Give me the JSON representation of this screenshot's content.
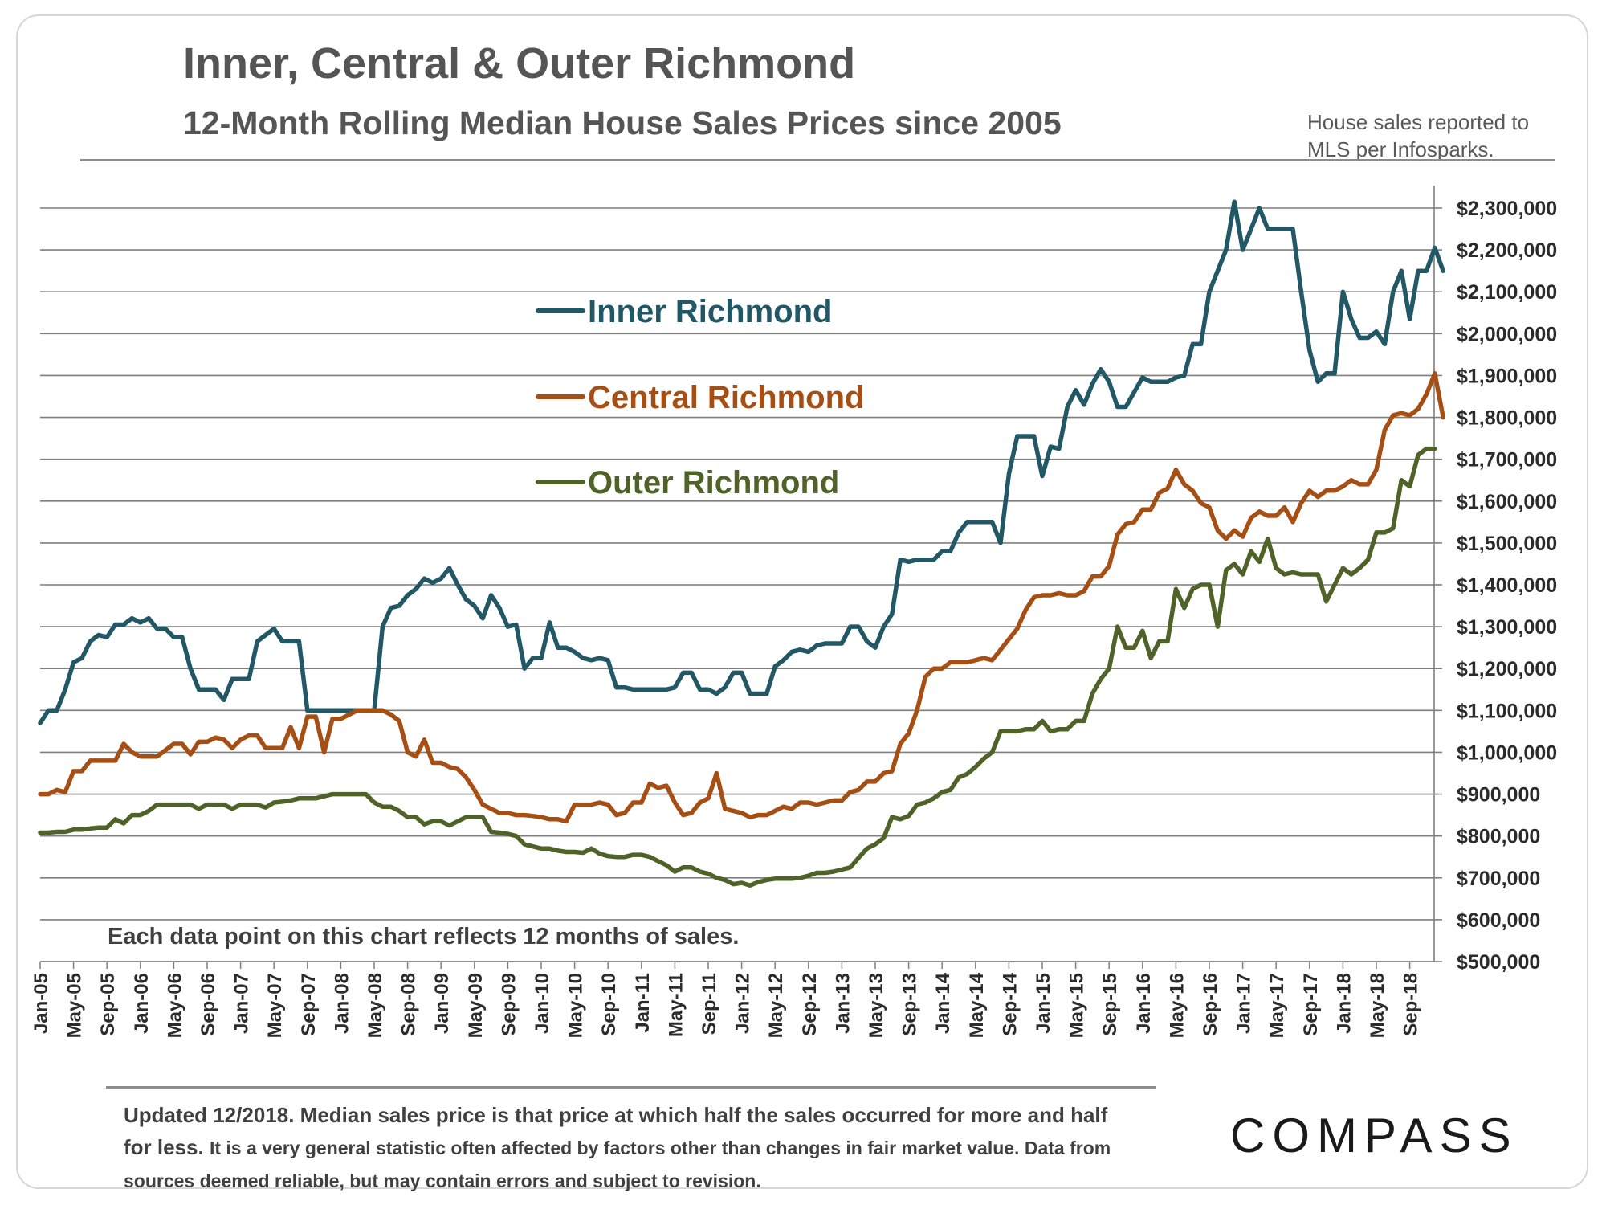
{
  "header": {
    "title": "Inner, Central & Outer Richmond",
    "subtitle": "12-Month Rolling Median House Sales Prices since 2005",
    "source_note": "House sales reported to MLS per Infosparks."
  },
  "chart_note": "Each data point on this chart reflects 12 months of sales.",
  "footer": {
    "lead": "Updated 12/2018. Median sales price is that price at which half the sales occurred for more and half for less.",
    "rest": "It is a very general statistic often affected by factors other than changes in fair market value. Data from sources deemed reliable, but may contain errors and subject to revision."
  },
  "logo": {
    "text": "COMPASS",
    "color": "#1a1a1a"
  },
  "chart_data": {
    "type": "line",
    "title": "12-Month Rolling Median House Sales Prices since 2005",
    "xlabel": "",
    "ylabel": "",
    "ylim": [
      500000,
      2300000
    ],
    "grid": true,
    "legend_position": "upper-middle",
    "y_ticks": [
      "$500,000",
      "$600,000",
      "$700,000",
      "$800,000",
      "$900,000",
      "$1,000,000",
      "$1,100,000",
      "$1,200,000",
      "$1,300,000",
      "$1,400,000",
      "$1,500,000",
      "$1,600,000",
      "$1,700,000",
      "$1,800,000",
      "$1,900,000",
      "$2,000,000",
      "$2,100,000",
      "$2,200,000",
      "$2,300,000"
    ],
    "y_tick_values": [
      500000,
      600000,
      700000,
      800000,
      900000,
      1000000,
      1100000,
      1200000,
      1300000,
      1400000,
      1500000,
      1600000,
      1700000,
      1800000,
      1900000,
      2000000,
      2100000,
      2200000,
      2300000
    ],
    "x_ticks": [
      "Jan-05",
      "May-05",
      "Sep-05",
      "Jan-06",
      "May-06",
      "Sep-06",
      "Jan-07",
      "May-07",
      "Sep-07",
      "Jan-08",
      "May-08",
      "Sep-08",
      "Jan-09",
      "May-09",
      "Sep-09",
      "Jan-10",
      "May-10",
      "Sep-10",
      "Jan-11",
      "May-11",
      "Sep-11",
      "Jan-12",
      "May-12",
      "Sep-12",
      "Jan-13",
      "May-13",
      "Sep-13",
      "Jan-14",
      "May-14",
      "Sep-14",
      "Jan-15",
      "May-15",
      "Sep-15",
      "Jan-16",
      "May-16",
      "Sep-16",
      "Jan-17",
      "May-17",
      "Sep-17",
      "Jan-18",
      "May-18",
      "Sep-18"
    ],
    "x_start": "Jan-05",
    "x_step": "month",
    "series": [
      {
        "name": "Inner Richmond",
        "color": "#225766",
        "values": [
          1070000,
          1100000,
          1100000,
          1150000,
          1215000,
          1225000,
          1265000,
          1280000,
          1275000,
          1305000,
          1305000,
          1320000,
          1310000,
          1320000,
          1295000,
          1295000,
          1275000,
          1275000,
          1200000,
          1150000,
          1150000,
          1150000,
          1125000,
          1175000,
          1175000,
          1175000,
          1265000,
          1280000,
          1295000,
          1265000,
          1265000,
          1265000,
          1100000,
          1100000,
          1100000,
          1100000,
          1100000,
          1100000,
          1100000,
          1100000,
          1100000,
          1300000,
          1345000,
          1350000,
          1375000,
          1390000,
          1415000,
          1405000,
          1415000,
          1440000,
          1400000,
          1365000,
          1350000,
          1320000,
          1375000,
          1345000,
          1300000,
          1305000,
          1200000,
          1225000,
          1225000,
          1310000,
          1250000,
          1250000,
          1240000,
          1225000,
          1220000,
          1225000,
          1220000,
          1155000,
          1155000,
          1150000,
          1150000,
          1150000,
          1150000,
          1150000,
          1155000,
          1190000,
          1190000,
          1150000,
          1150000,
          1140000,
          1155000,
          1190000,
          1190000,
          1140000,
          1140000,
          1140000,
          1205000,
          1220000,
          1240000,
          1245000,
          1240000,
          1255000,
          1260000,
          1260000,
          1260000,
          1300000,
          1300000,
          1265000,
          1250000,
          1300000,
          1330000,
          1460000,
          1455000,
          1460000,
          1460000,
          1460000,
          1480000,
          1480000,
          1525000,
          1550000,
          1550000,
          1550000,
          1550000,
          1500000,
          1665000,
          1755000,
          1755000,
          1755000,
          1660000,
          1730000,
          1725000,
          1825000,
          1865000,
          1830000,
          1880000,
          1915000,
          1885000,
          1825000,
          1825000,
          1860000,
          1895000,
          1885000,
          1885000,
          1885000,
          1895000,
          1900000,
          1975000,
          1975000,
          2100000,
          2150000,
          2200000,
          2315000,
          2200000,
          2250000,
          2300000,
          2250000,
          2250000,
          2250000,
          2250000,
          2100000,
          1960000,
          1885000,
          1905000,
          1905000,
          2100000,
          2035000,
          1990000,
          1990000,
          2005000,
          1975000,
          2100000,
          2150000,
          2035000,
          2150000,
          2150000,
          2205000,
          2150000
        ]
      },
      {
        "name": "Central Richmond",
        "color": "#a54f15",
        "values": [
          900000,
          900000,
          910000,
          905000,
          955000,
          955000,
          980000,
          980000,
          980000,
          980000,
          1020000,
          1000000,
          990000,
          990000,
          990000,
          1005000,
          1020000,
          1020000,
          995000,
          1025000,
          1025000,
          1035000,
          1030000,
          1010000,
          1030000,
          1040000,
          1040000,
          1010000,
          1010000,
          1010000,
          1060000,
          1010000,
          1085000,
          1085000,
          1000000,
          1080000,
          1080000,
          1090000,
          1100000,
          1100000,
          1100000,
          1100000,
          1090000,
          1075000,
          1000000,
          990000,
          1030000,
          975000,
          975000,
          965000,
          960000,
          940000,
          910000,
          875000,
          865000,
          855000,
          855000,
          850000,
          850000,
          848000,
          845000,
          840000,
          840000,
          835000,
          875000,
          875000,
          875000,
          880000,
          875000,
          850000,
          855000,
          880000,
          880000,
          925000,
          915000,
          920000,
          880000,
          850000,
          855000,
          880000,
          890000,
          950000,
          865000,
          860000,
          855000,
          845000,
          850000,
          850000,
          860000,
          870000,
          865000,
          880000,
          880000,
          875000,
          880000,
          885000,
          885000,
          905000,
          910000,
          930000,
          930000,
          950000,
          955000,
          1020000,
          1045000,
          1100000,
          1180000,
          1200000,
          1200000,
          1215000,
          1215000,
          1215000,
          1220000,
          1225000,
          1220000,
          1245000,
          1270000,
          1295000,
          1340000,
          1370000,
          1375000,
          1375000,
          1380000,
          1375000,
          1375000,
          1385000,
          1420000,
          1420000,
          1445000,
          1520000,
          1545000,
          1550000,
          1580000,
          1580000,
          1620000,
          1630000,
          1675000,
          1640000,
          1625000,
          1595000,
          1585000,
          1530000,
          1510000,
          1530000,
          1515000,
          1560000,
          1575000,
          1565000,
          1565000,
          1585000,
          1550000,
          1595000,
          1625000,
          1610000,
          1625000,
          1625000,
          1635000,
          1650000,
          1640000,
          1640000,
          1675000,
          1770000,
          1805000,
          1810000,
          1805000,
          1820000,
          1855000,
          1905000,
          1800000
        ]
      },
      {
        "name": "Outer Richmond",
        "color": "#4f6328",
        "values": [
          808000,
          808000,
          810000,
          810000,
          815000,
          815000,
          818000,
          820000,
          820000,
          840000,
          830000,
          850000,
          850000,
          860000,
          875000,
          875000,
          875000,
          875000,
          875000,
          865000,
          875000,
          875000,
          875000,
          865000,
          875000,
          875000,
          875000,
          868000,
          880000,
          882000,
          885000,
          890000,
          890000,
          890000,
          895000,
          900000,
          900000,
          900000,
          900000,
          900000,
          880000,
          870000,
          870000,
          860000,
          845000,
          845000,
          828000,
          835000,
          835000,
          825000,
          835000,
          845000,
          845000,
          845000,
          810000,
          808000,
          805000,
          800000,
          780000,
          775000,
          770000,
          770000,
          765000,
          762000,
          762000,
          760000,
          770000,
          758000,
          752000,
          750000,
          750000,
          755000,
          755000,
          750000,
          740000,
          730000,
          715000,
          725000,
          725000,
          715000,
          710000,
          700000,
          695000,
          685000,
          688000,
          682000,
          690000,
          695000,
          698000,
          698000,
          698000,
          700000,
          705000,
          712000,
          712000,
          715000,
          720000,
          725000,
          748000,
          770000,
          780000,
          795000,
          845000,
          840000,
          848000,
          875000,
          880000,
          890000,
          905000,
          910000,
          940000,
          948000,
          965000,
          985000,
          1000000,
          1050000,
          1050000,
          1050000,
          1055000,
          1055000,
          1075000,
          1050000,
          1055000,
          1055000,
          1075000,
          1075000,
          1140000,
          1175000,
          1200000,
          1300000,
          1250000,
          1250000,
          1290000,
          1225000,
          1265000,
          1265000,
          1390000,
          1345000,
          1390000,
          1400000,
          1400000,
          1300000,
          1435000,
          1450000,
          1425000,
          1480000,
          1455000,
          1510000,
          1440000,
          1425000,
          1430000,
          1425000,
          1425000,
          1425000,
          1360000,
          1400000,
          1440000,
          1425000,
          1440000,
          1460000,
          1525000,
          1525000,
          1535000,
          1650000,
          1635000,
          1710000,
          1725000,
          1725000
        ]
      }
    ]
  }
}
